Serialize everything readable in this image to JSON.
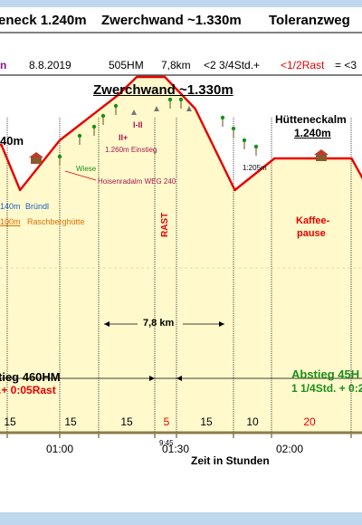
{
  "header": {
    "top_left": "eneck 1.240m",
    "top_mid": "Zwerchwand ~1.330m",
    "top_right": "Toleranzweg",
    "row2_left": "n",
    "date": "8.8.2019",
    "elevation_gain": "505HM",
    "distance": "7,8km",
    "duration": "<2 3/4Std.+",
    "rest": "<1/2Rast",
    "tail": "= <3"
  },
  "colors": {
    "fill": "#fff9cc",
    "route": "#e60000",
    "ground": "#8b7d4e",
    "blue": "#1f5fc9",
    "green": "#1a8f1a",
    "orange": "#e07000",
    "grid": "#000000",
    "frame_blue": "#bed7ee"
  },
  "chart_data": {
    "type": "area",
    "title": "Zwerchwand ~1.330m",
    "xlabel": "Zeit in Stunden",
    "x_ticks": [
      "01:00",
      "01:30",
      "02:00"
    ],
    "start_time_label": "9:45",
    "segment_minutes": [
      "15",
      "15",
      "15",
      "5",
      "15",
      "10",
      "20"
    ],
    "distance_label": "7,8 km",
    "rast_label": "RAST",
    "profile": [
      {
        "t": 0.25,
        "elev": 1120
      },
      {
        "t": 0.6,
        "elev": 1248
      },
      {
        "t": 0.75,
        "elev": 1255
      },
      {
        "t": 0.83,
        "elev": 1205
      },
      {
        "t": 1.0,
        "elev": 1260
      },
      {
        "t": 1.25,
        "elev": 1310
      },
      {
        "t": 1.33,
        "elev": 1330
      },
      {
        "t": 1.45,
        "elev": 1330
      },
      {
        "t": 1.58,
        "elev": 1295
      },
      {
        "t": 1.75,
        "elev": 1205
      },
      {
        "t": 1.92,
        "elev": 1240
      },
      {
        "t": 2.25,
        "elev": 1240
      },
      {
        "t": 2.4,
        "elev": 1170
      }
    ]
  },
  "labels": {
    "left_peak_value": "40m",
    "left_blue": "140m",
    "left_blue_name": "Bründl",
    "left_orange_num": "100m",
    "left_orange_name": "Raschberghütte",
    "wiese": "Wiese",
    "einstieg": "1.260m Einstieg",
    "grade_1": "I-II",
    "grade_2": "II+",
    "weg": "Hoisenradalm WEG 240",
    "saddle": "1:205m",
    "huette_name": "Hütteneckalm",
    "huette_elev": "1.240m",
    "kaffee": "Kaffee-",
    "pause": "pause",
    "ascent": "tieg 460HM",
    "ascent_time": ".+ 0:05Rast",
    "descent": "Abstieg 45H",
    "descent_time": "1 1/4Std. + 0:2"
  }
}
